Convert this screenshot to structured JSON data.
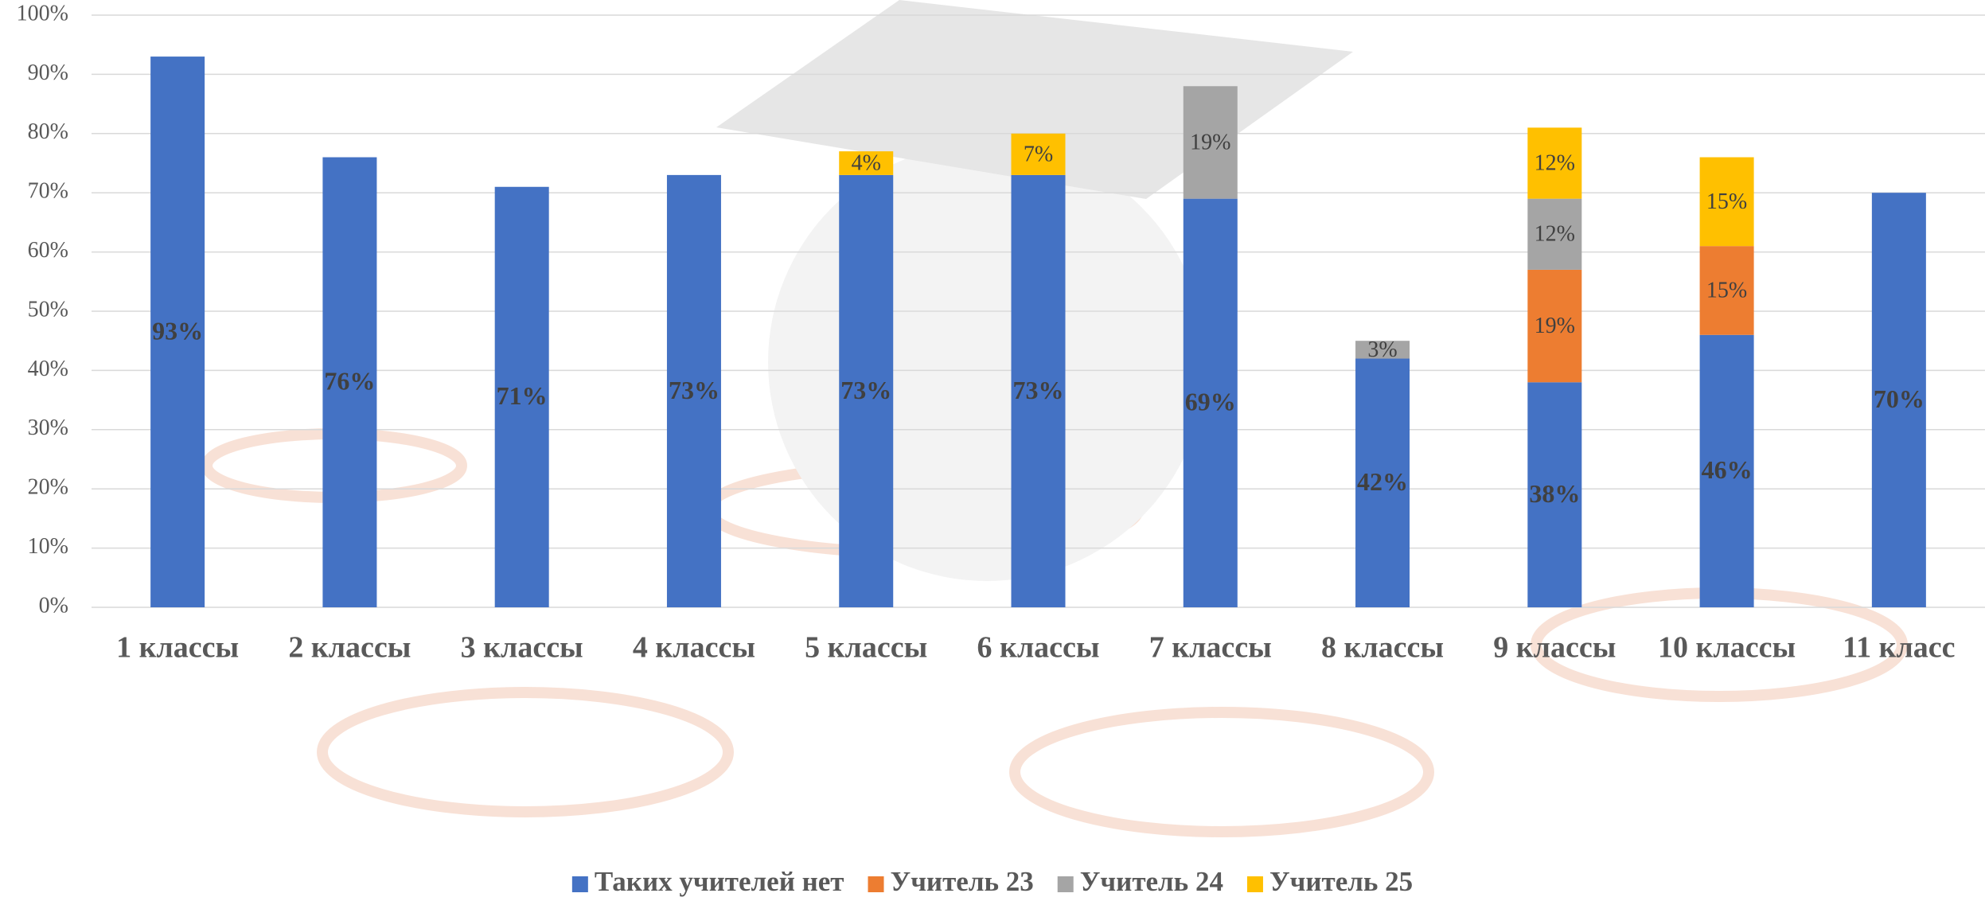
{
  "chart_data": {
    "type": "stacked-bar",
    "categories": [
      "1 классы",
      "2 классы",
      "3 классы",
      "4 классы",
      "5 классы",
      "6 классы",
      "7 классы",
      "8 классы",
      "9 классы",
      "10 классы",
      "11 класс"
    ],
    "series": [
      {
        "name": "Таких учителей нет",
        "color": "#4472c4",
        "values": [
          93,
          76,
          71,
          73,
          73,
          73,
          69,
          42,
          38,
          46,
          70
        ],
        "value_labels": [
          "93%",
          "76%",
          "71%",
          "73%",
          "73%",
          "73%",
          "69%",
          "42%",
          "38%",
          "46%",
          "70%"
        ]
      },
      {
        "name": "Учитель 23",
        "color": "#ed7d31",
        "values": [
          null,
          null,
          null,
          null,
          null,
          null,
          null,
          null,
          19,
          15,
          null
        ],
        "value_labels": [
          null,
          null,
          null,
          null,
          null,
          null,
          null,
          null,
          "19%",
          "15%",
          null
        ]
      },
      {
        "name": "Учитель 24",
        "color": "#a5a5a5",
        "values": [
          null,
          null,
          null,
          null,
          null,
          null,
          19,
          3,
          12,
          null,
          null
        ],
        "value_labels": [
          null,
          null,
          null,
          null,
          null,
          null,
          "19%",
          "3%",
          "12%",
          null,
          null
        ]
      },
      {
        "name": "Учитель 25",
        "color": "#ffc000",
        "values": [
          null,
          null,
          null,
          null,
          4,
          7,
          null,
          null,
          12,
          15,
          null
        ],
        "value_labels": [
          null,
          null,
          null,
          null,
          "4%",
          "7%",
          null,
          null,
          "12%",
          "15%",
          null
        ]
      }
    ],
    "ylim": [
      0,
      100
    ],
    "yticks": [
      {
        "value": 0,
        "label": "0%"
      },
      {
        "value": 10,
        "label": "10%"
      },
      {
        "value": 20,
        "label": "20%"
      },
      {
        "value": 30,
        "label": "30%"
      },
      {
        "value": 40,
        "label": "40%"
      },
      {
        "value": 50,
        "label": "50%"
      },
      {
        "value": 60,
        "label": "60%"
      },
      {
        "value": 70,
        "label": "70%"
      },
      {
        "value": 80,
        "label": "80%"
      },
      {
        "value": 90,
        "label": "90%"
      },
      {
        "value": 100,
        "label": "100%"
      }
    ],
    "grid": true,
    "legend": "bottom"
  }
}
